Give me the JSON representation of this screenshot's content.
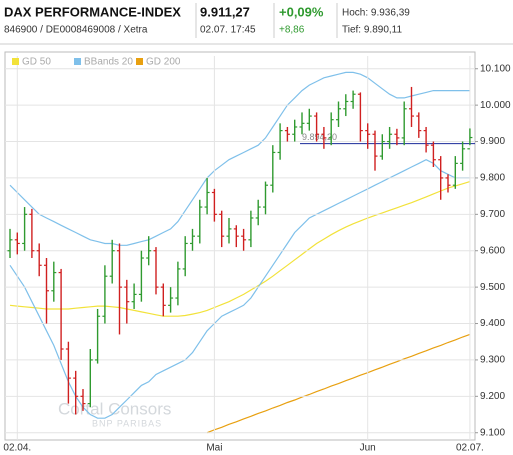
{
  "header": {
    "name": "DAX PERFORMANCE-INDEX",
    "price": "9.911,27",
    "change_pct": "+0,09%",
    "high": "Hoch: 9.936,39",
    "ids": "846900 / DE0008469008 / Xetra",
    "time": "02.07. 17:45",
    "change": "+8,86",
    "low": "Tief: 9.890,11"
  },
  "chart_data": {
    "type": "ohlc",
    "watermark": "Cortal Consors",
    "watermark_sub": "BNP PARIBAS",
    "categories": [
      null,
      "02.04.",
      null,
      null,
      null,
      null,
      null,
      null,
      null,
      null,
      null,
      null,
      null,
      null,
      null,
      null,
      null,
      null,
      null,
      null,
      null,
      null,
      null,
      null,
      null,
      null,
      null,
      null,
      "Mai",
      null,
      null,
      null,
      null,
      null,
      null,
      null,
      null,
      null,
      null,
      null,
      null,
      null,
      null,
      null,
      null,
      null,
      null,
      null,
      null,
      "Jun",
      null,
      null,
      null,
      null,
      null,
      null,
      null,
      null,
      null,
      null,
      null,
      null,
      null,
      "02.07."
    ],
    "open": [
      9600,
      9630,
      9620,
      9700,
      9600,
      9560,
      9490,
      9540,
      9330,
      9250,
      9200,
      9180,
      9300,
      9420,
      9530,
      9600,
      9500,
      9460,
      9480,
      9580,
      9600,
      9500,
      9450,
      9470,
      9550,
      9620,
      9640,
      9720,
      9760,
      9700,
      9640,
      9660,
      9640,
      9630,
      9690,
      9720,
      9780,
      9870,
      9930,
      9920,
      9940,
      9950,
      9970,
      9920,
      9910,
      9960,
      9990,
      10010,
      10030,
      9930,
      9920,
      9860,
      9900,
      9920,
      9910,
      9990,
      9970,
      9930,
      9890,
      9850,
      9800,
      9780,
      9840,
      9880
    ],
    "high": [
      9660,
      9650,
      9720,
      9715,
      9620,
      9580,
      9570,
      9550,
      9350,
      9270,
      9220,
      9330,
      9440,
      9560,
      9630,
      9620,
      9520,
      9510,
      9600,
      9640,
      9610,
      9510,
      9500,
      9570,
      9640,
      9660,
      9740,
      9800,
      9770,
      9710,
      9690,
      9670,
      9660,
      9710,
      9740,
      9790,
      9890,
      9950,
      9940,
      9960,
      9980,
      9990,
      9980,
      9940,
      9980,
      10010,
      10030,
      10040,
      10035,
      9950,
      9930,
      9920,
      9940,
      9935,
      10010,
      10050,
      9980,
      9940,
      9900,
      9860,
      9810,
      9860,
      9900,
      9936
    ],
    "low": [
      9580,
      9590,
      9600,
      9580,
      9530,
      9400,
      9460,
      9300,
      9180,
      9150,
      9160,
      9170,
      9290,
      9400,
      9510,
      9370,
      9400,
      9440,
      9460,
      9560,
      9480,
      9420,
      9430,
      9450,
      9530,
      9600,
      9620,
      9700,
      9680,
      9610,
      9620,
      9610,
      9600,
      9610,
      9670,
      9700,
      9760,
      9850,
      9900,
      9900,
      9920,
      9930,
      9900,
      9880,
      9890,
      9940,
      9970,
      9990,
      9900,
      9880,
      9820,
      9850,
      9880,
      9890,
      9890,
      9940,
      9910,
      9870,
      9830,
      9740,
      9760,
      9770,
      9820,
      9890
    ],
    "close": [
      9630,
      9620,
      9700,
      9600,
      9560,
      9490,
      9540,
      9330,
      9250,
      9200,
      9180,
      9300,
      9420,
      9530,
      9600,
      9500,
      9460,
      9480,
      9580,
      9600,
      9500,
      9450,
      9470,
      9550,
      9620,
      9640,
      9720,
      9760,
      9700,
      9640,
      9660,
      9640,
      9630,
      9690,
      9720,
      9780,
      9870,
      9930,
      9920,
      9940,
      9950,
      9970,
      9920,
      9910,
      9960,
      9990,
      10010,
      10030,
      9930,
      9920,
      9860,
      9900,
      9920,
      9910,
      9990,
      9970,
      9930,
      9890,
      9850,
      9800,
      9780,
      9840,
      9880,
      9911
    ],
    "up_color": "#2f9a2f",
    "down_color": "#d02020",
    "series": [
      {
        "name": "GD 50",
        "color": "#f2e23a",
        "values": [
          9450,
          9448,
          9446,
          9444,
          9442,
          9440,
          9440,
          9440,
          9440,
          9442,
          9444,
          9446,
          9448,
          9448,
          9446,
          9444,
          9440,
          9436,
          9432,
          9428,
          9424,
          9420,
          9420,
          9420,
          9422,
          9426,
          9430,
          9436,
          9444,
          9452,
          9460,
          9470,
          9480,
          9492,
          9504,
          9516,
          9530,
          9545,
          9560,
          9575,
          9590,
          9605,
          9620,
          9632,
          9644,
          9655,
          9665,
          9674,
          9682,
          9690,
          9697,
          9704,
          9711,
          9718,
          9725,
          9732,
          9740,
          9748,
          9756,
          9764,
          9772,
          9778,
          9784,
          9790
        ]
      },
      {
        "name": "BBands 20",
        "color": "#7fc0ea",
        "upper": [
          9780,
          9760,
          9740,
          9720,
          9700,
          9690,
          9680,
          9670,
          9660,
          9650,
          9640,
          9630,
          9625,
          9620,
          9620,
          9615,
          9615,
          9620,
          9625,
          9630,
          9640,
          9650,
          9660,
          9680,
          9710,
          9740,
          9770,
          9800,
          9820,
          9835,
          9850,
          9860,
          9870,
          9880,
          9890,
          9910,
          9940,
          9970,
          10000,
          10020,
          10040,
          10055,
          10065,
          10075,
          10080,
          10085,
          10090,
          10090,
          10085,
          10075,
          10060,
          10045,
          10030,
          10020,
          10020,
          10025,
          10030,
          10035,
          10040,
          10040,
          10040,
          10040,
          10040,
          10040
        ],
        "lower": [
          9560,
          9530,
          9500,
          9460,
          9420,
          9380,
          9340,
          9290,
          9240,
          9200,
          9170,
          9150,
          9140,
          9140,
          9150,
          9170,
          9190,
          9210,
          9230,
          9240,
          9260,
          9270,
          9280,
          9290,
          9300,
          9320,
          9350,
          9380,
          9400,
          9420,
          9430,
          9440,
          9450,
          9470,
          9500,
          9530,
          9560,
          9590,
          9620,
          9650,
          9670,
          9690,
          9700,
          9710,
          9720,
          9730,
          9740,
          9750,
          9760,
          9770,
          9780,
          9790,
          9800,
          9810,
          9820,
          9830,
          9840,
          9850,
          9840,
          9820,
          9810,
          9800,
          9800,
          9800
        ]
      },
      {
        "name": "GD 200",
        "color": "#e8a010",
        "values": [
          null,
          null,
          null,
          null,
          null,
          null,
          null,
          null,
          null,
          null,
          null,
          null,
          null,
          null,
          null,
          null,
          null,
          null,
          null,
          null,
          null,
          null,
          null,
          null,
          null,
          null,
          null,
          9100,
          9108,
          9115,
          9123,
          9130,
          9138,
          9145,
          9153,
          9160,
          9168,
          9175,
          9183,
          9190,
          9198,
          9205,
          9213,
          9220,
          9228,
          9235,
          9243,
          9250,
          9258,
          9265,
          9273,
          9280,
          9288,
          9295,
          9303,
          9310,
          9318,
          9325,
          9333,
          9340,
          9348,
          9355,
          9363,
          9370
        ]
      }
    ],
    "price_line": {
      "value": 9894.2,
      "label": "9.894,20",
      "color": "#1a2a9a"
    },
    "ylim": [
      9080,
      10135
    ],
    "yticks": [
      {
        "value": 9100,
        "label": "9.100"
      },
      {
        "value": 9200,
        "label": "9.200"
      },
      {
        "value": 9300,
        "label": "9.300"
      },
      {
        "value": 9400,
        "label": "9.400"
      },
      {
        "value": 9500,
        "label": "9.500"
      },
      {
        "value": 9600,
        "label": "9.600"
      },
      {
        "value": 9700,
        "label": "9.700"
      },
      {
        "value": 9800,
        "label": "9.800"
      },
      {
        "value": 9900,
        "label": "9.900"
      },
      {
        "value": 10000,
        "label": "10.000"
      },
      {
        "value": 10100,
        "label": "10.100"
      }
    ],
    "grid": true
  }
}
